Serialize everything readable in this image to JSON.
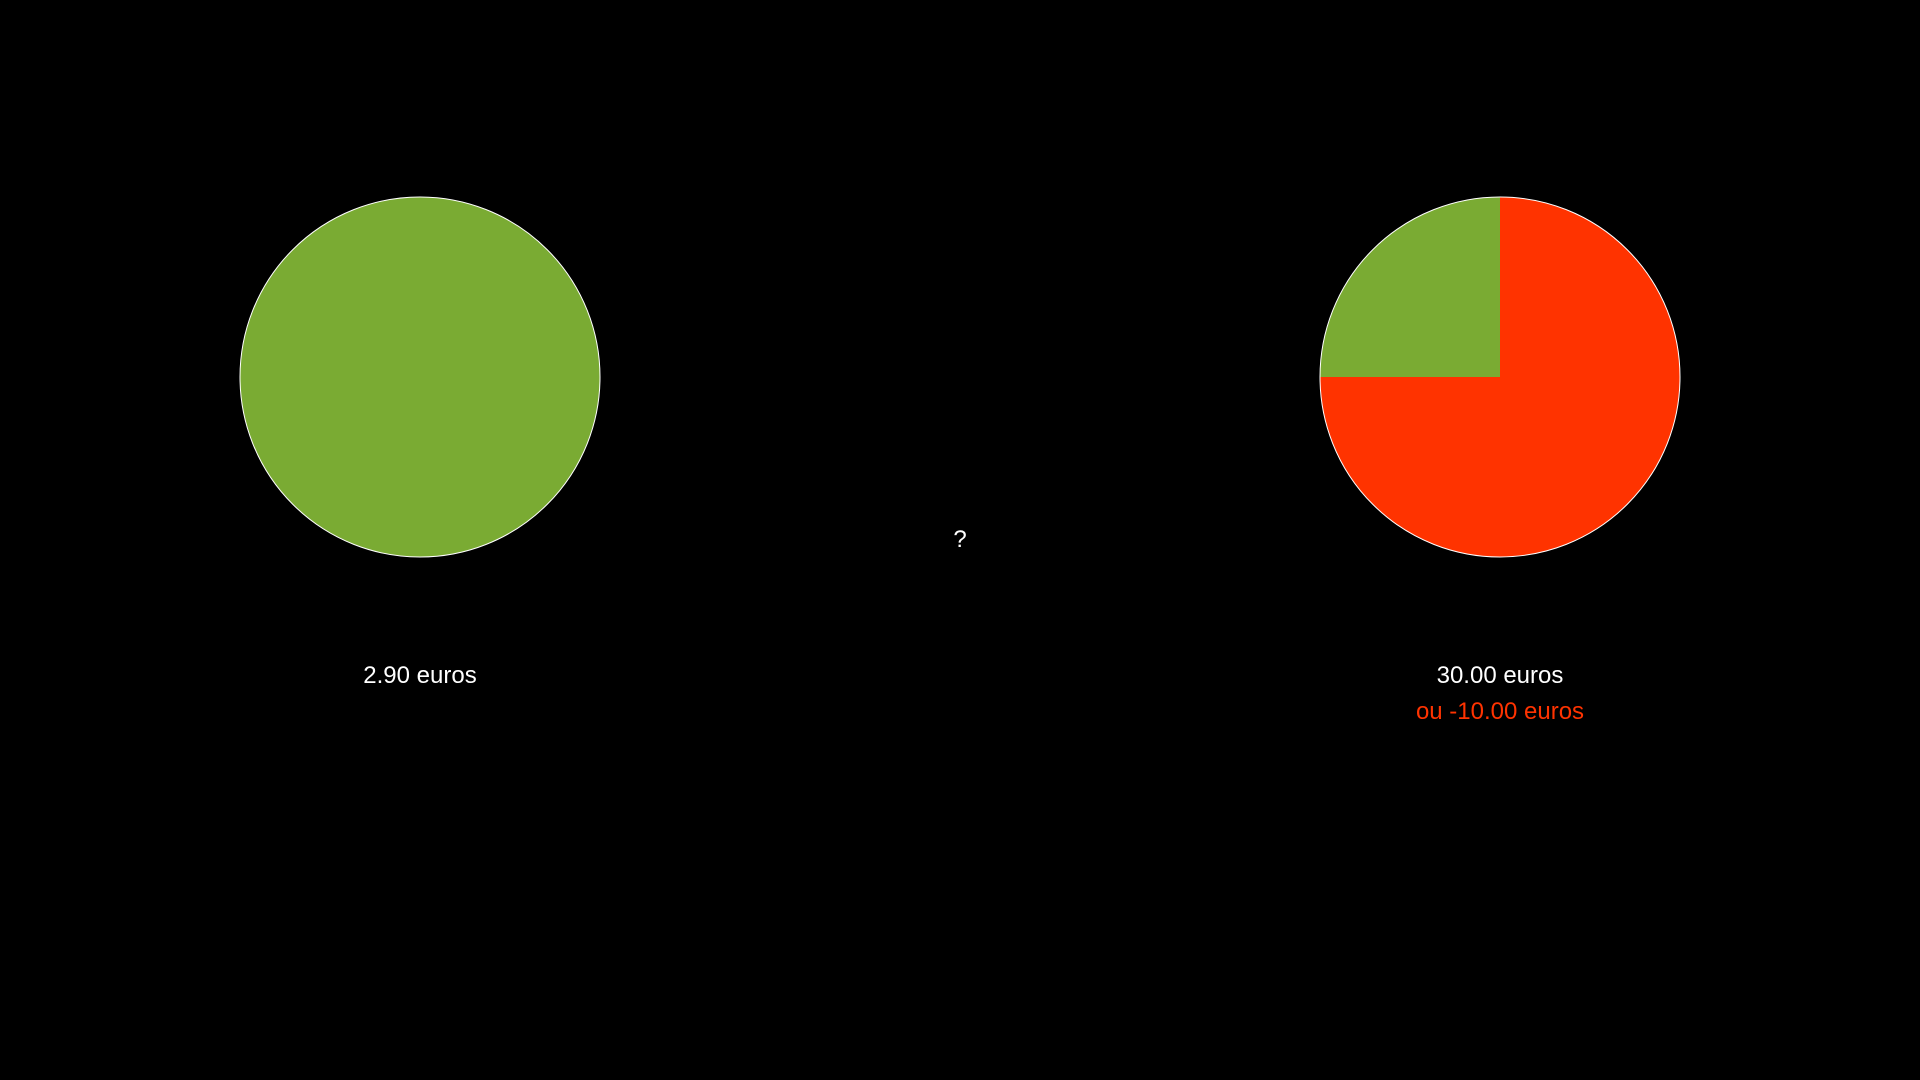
{
  "colors": {
    "background": "#000000",
    "gain": "#7aab33",
    "loss": "#ff3300",
    "outline": "#ffffff",
    "text": "#ffffff"
  },
  "left_option": {
    "amount_label": "2.90 euros",
    "probability_gain": 1.0,
    "probability_loss": 0.0
  },
  "center": {
    "prompt": "?"
  },
  "right_option": {
    "amount_label": "30.00 euros",
    "alternative_label": "ou -10.00 euros",
    "probability_gain": 0.25,
    "probability_loss": 0.75
  }
}
